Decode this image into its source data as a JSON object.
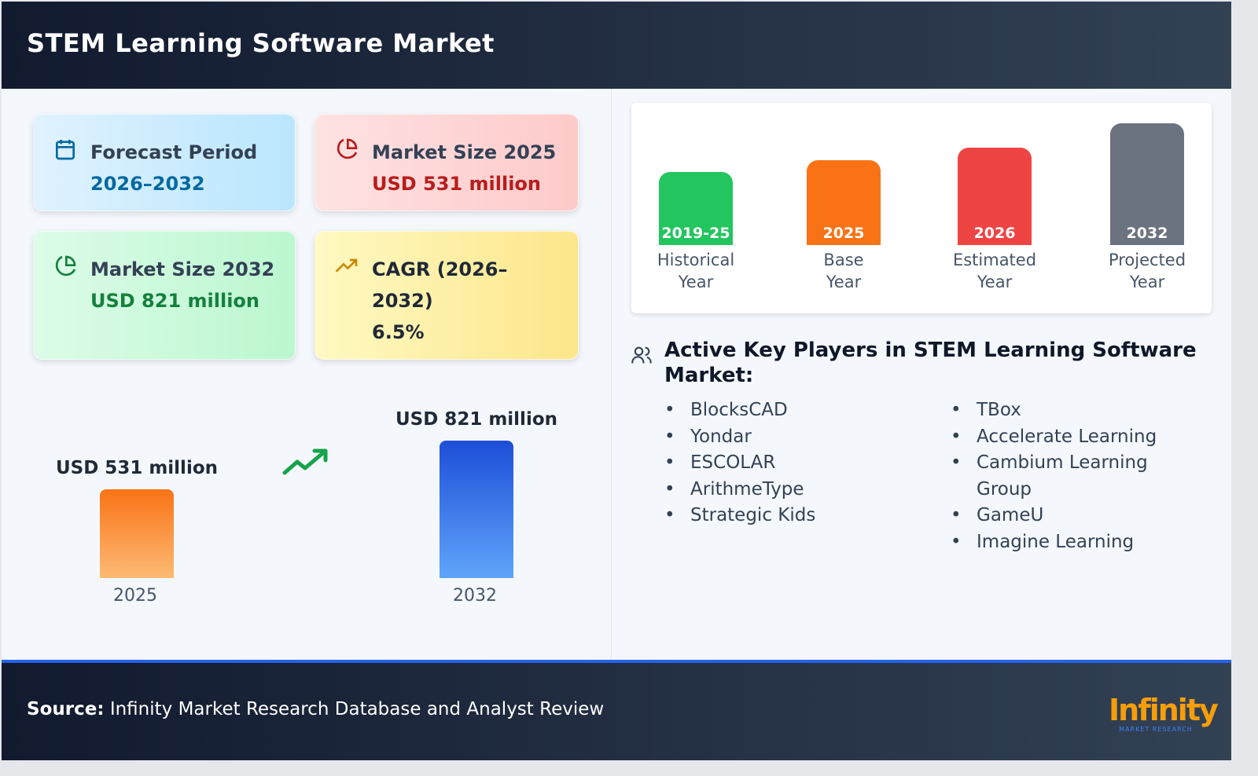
{
  "header": {
    "title": "STEM Learning Software Market"
  },
  "cards": {
    "forecast": {
      "label": "Forecast Period",
      "value": "2026–2032",
      "color": "#0369a1"
    },
    "size2025": {
      "label": "Market Size 2025",
      "value": "USD 531 million",
      "color": "#b91c1c"
    },
    "size2032": {
      "label": "Market Size 2032",
      "value": "USD 821 million",
      "color": "#15803d"
    },
    "cagr": {
      "label": "CAGR (2026–2032)",
      "value": "6.5%"
    }
  },
  "chart_data": {
    "type": "bar",
    "categories": [
      "2025",
      "2032"
    ],
    "values": [
      531,
      821
    ],
    "labels": [
      "USD 531 million",
      "USD 821 million"
    ],
    "unit": "USD million",
    "title": "",
    "xlabel": "",
    "ylabel": ""
  },
  "timeline": [
    {
      "year": "2019-25",
      "label1": "Historical",
      "label2": "Year",
      "color": "#22c55e",
      "level": 0.6
    },
    {
      "year": "2025",
      "label1": "Base",
      "label2": "Year",
      "color": "#f97316",
      "level": 0.7
    },
    {
      "year": "2026",
      "label1": "Estimated",
      "label2": "Year",
      "color": "#ef4444",
      "level": 0.8
    },
    {
      "year": "2032",
      "label1": "Projected",
      "label2": "Year",
      "color": "#6b7280",
      "level": 1.0
    }
  ],
  "players": {
    "title": "Active Key Players in STEM Learning Software Market:",
    "col1": [
      "BlocksCAD",
      "Yondar",
      "ESCOLAR",
      "ArithmeType",
      "Strategic Kids"
    ],
    "col2": [
      "TBox",
      "Accelerate Learning",
      "Cambium Learning Group",
      "GameU",
      "Imagine Learning"
    ]
  },
  "footer": {
    "source_label": "Source:",
    "source_text": " Infinity Market Research Database and Analyst Review",
    "logo_text": "Infinity",
    "logo_sub": "MARKET RESEARCH"
  }
}
